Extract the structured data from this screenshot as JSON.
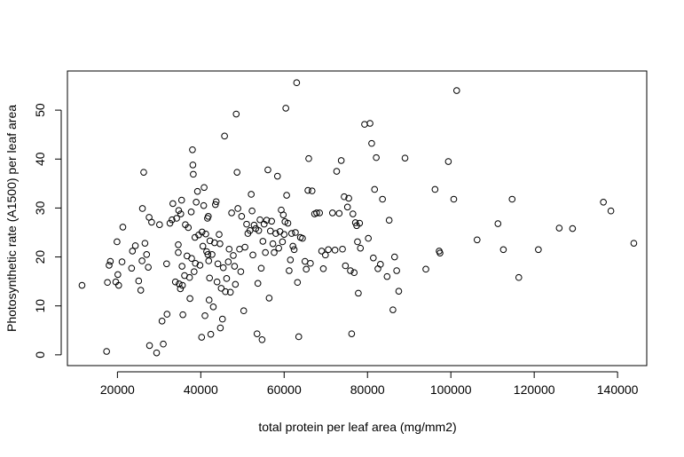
{
  "chart_data": {
    "type": "scatter",
    "title": "",
    "xlabel": "total protein per leaf area (mg/mm2)",
    "ylabel": "Photosynthetic rate (A1500) per leaf area",
    "xlim": [
      8000,
      147000
    ],
    "ylim": [
      -2.2,
      58
    ],
    "xticks": [
      20000,
      40000,
      60000,
      80000,
      100000,
      120000,
      140000
    ],
    "xtick_labels": [
      "20000",
      "40000",
      "60000",
      "80000",
      "100000",
      "120000",
      "140000"
    ],
    "yticks": [
      0,
      10,
      20,
      30,
      40,
      50
    ],
    "ytick_labels": [
      "0",
      "10",
      "20",
      "30",
      "40",
      "50"
    ],
    "grid": false,
    "legend": "none",
    "marker": "open-circle",
    "colors": {
      "point": "#000000",
      "axis": "#000000",
      "background": "#ffffff"
    },
    "points": [
      [
        11500,
        14.2
      ],
      [
        17400,
        0.7
      ],
      [
        17600,
        14.8
      ],
      [
        18000,
        18.3
      ],
      [
        18300,
        19.1
      ],
      [
        19600,
        14.9
      ],
      [
        19900,
        23.1
      ],
      [
        20100,
        16.4
      ],
      [
        20300,
        14.2
      ],
      [
        21100,
        19.0
      ],
      [
        21300,
        26.1
      ],
      [
        23400,
        17.7
      ],
      [
        23600,
        21.2
      ],
      [
        24300,
        22.3
      ],
      [
        25100,
        15.1
      ],
      [
        25600,
        13.2
      ],
      [
        25900,
        19.2
      ],
      [
        26000,
        29.9
      ],
      [
        26300,
        37.3
      ],
      [
        26600,
        22.8
      ],
      [
        27000,
        20.5
      ],
      [
        27400,
        17.9
      ],
      [
        27600,
        28.1
      ],
      [
        27700,
        1.9
      ],
      [
        28200,
        27.1
      ],
      [
        29400,
        0.4
      ],
      [
        30100,
        26.6
      ],
      [
        30700,
        6.9
      ],
      [
        31000,
        2.2
      ],
      [
        31800,
        18.6
      ],
      [
        31900,
        8.3
      ],
      [
        32600,
        26.9
      ],
      [
        33100,
        27.6
      ],
      [
        33300,
        30.9
      ],
      [
        33900,
        14.9
      ],
      [
        34200,
        27.9
      ],
      [
        34600,
        20.9
      ],
      [
        34600,
        22.5
      ],
      [
        34700,
        29.5
      ],
      [
        34800,
        14.5
      ],
      [
        35100,
        13.5
      ],
      [
        35200,
        28.8
      ],
      [
        35400,
        31.6
      ],
      [
        35500,
        18.1
      ],
      [
        35600,
        14.2
      ],
      [
        35700,
        8.2
      ],
      [
        36100,
        16.2
      ],
      [
        36300,
        26.6
      ],
      [
        36700,
        20.2
      ],
      [
        37000,
        26.0
      ],
      [
        37300,
        15.8
      ],
      [
        37400,
        11.5
      ],
      [
        37700,
        29.2
      ],
      [
        37800,
        19.7
      ],
      [
        38000,
        41.9
      ],
      [
        38100,
        38.8
      ],
      [
        38200,
        36.9
      ],
      [
        38400,
        17.0
      ],
      [
        38600,
        24.0
      ],
      [
        38700,
        18.7
      ],
      [
        38900,
        31.2
      ],
      [
        39200,
        33.4
      ],
      [
        39500,
        24.5
      ],
      [
        39800,
        18.3
      ],
      [
        40200,
        3.6
      ],
      [
        40300,
        25.1
      ],
      [
        40500,
        22.2
      ],
      [
        40700,
        30.5
      ],
      [
        40800,
        34.2
      ],
      [
        41000,
        8.0
      ],
      [
        41200,
        24.7
      ],
      [
        41400,
        21.1
      ],
      [
        41600,
        27.9
      ],
      [
        41700,
        20.5
      ],
      [
        41800,
        28.3
      ],
      [
        41900,
        19.2
      ],
      [
        42000,
        11.2
      ],
      [
        42100,
        15.7
      ],
      [
        42200,
        23.3
      ],
      [
        42400,
        4.2
      ],
      [
        42700,
        20.5
      ],
      [
        43000,
        9.8
      ],
      [
        43300,
        22.9
      ],
      [
        43500,
        30.7
      ],
      [
        43700,
        31.3
      ],
      [
        43900,
        14.9
      ],
      [
        44100,
        18.6
      ],
      [
        44400,
        24.6
      ],
      [
        44600,
        22.7
      ],
      [
        44700,
        5.5
      ],
      [
        44900,
        13.6
      ],
      [
        45200,
        7.3
      ],
      [
        45400,
        17.8
      ],
      [
        45700,
        44.7
      ],
      [
        45900,
        12.9
      ],
      [
        46200,
        15.6
      ],
      [
        46600,
        19.0
      ],
      [
        46800,
        21.6
      ],
      [
        47100,
        12.8
      ],
      [
        47400,
        29.0
      ],
      [
        47800,
        20.3
      ],
      [
        48100,
        18.1
      ],
      [
        48300,
        14.4
      ],
      [
        48500,
        49.2
      ],
      [
        48700,
        37.3
      ],
      [
        48900,
        29.9
      ],
      [
        49300,
        21.6
      ],
      [
        49600,
        17.0
      ],
      [
        49800,
        28.3
      ],
      [
        50300,
        9.0
      ],
      [
        50600,
        22.0
      ],
      [
        51000,
        26.7
      ],
      [
        51300,
        24.8
      ],
      [
        51800,
        25.4
      ],
      [
        52100,
        32.8
      ],
      [
        52300,
        29.4
      ],
      [
        52500,
        20.4
      ],
      [
        52800,
        26.5
      ],
      [
        53200,
        25.8
      ],
      [
        53500,
        4.3
      ],
      [
        53700,
        14.6
      ],
      [
        53900,
        25.4
      ],
      [
        54200,
        27.6
      ],
      [
        54500,
        17.7
      ],
      [
        54700,
        3.1
      ],
      [
        54900,
        23.2
      ],
      [
        55200,
        26.7
      ],
      [
        55500,
        20.9
      ],
      [
        55800,
        27.5
      ],
      [
        56100,
        37.8
      ],
      [
        56400,
        11.6
      ],
      [
        56700,
        25.3
      ],
      [
        57000,
        27.3
      ],
      [
        57300,
        22.7
      ],
      [
        57600,
        20.9
      ],
      [
        58000,
        24.8
      ],
      [
        58400,
        36.5
      ],
      [
        58700,
        21.8
      ],
      [
        59000,
        25.2
      ],
      [
        59300,
        29.6
      ],
      [
        59600,
        23.1
      ],
      [
        59800,
        28.6
      ],
      [
        60000,
        24.6
      ],
      [
        60200,
        27.2
      ],
      [
        60400,
        50.4
      ],
      [
        60600,
        32.6
      ],
      [
        60900,
        26.9
      ],
      [
        61200,
        17.2
      ],
      [
        61500,
        19.4
      ],
      [
        61800,
        24.8
      ],
      [
        62100,
        22.2
      ],
      [
        62400,
        21.5
      ],
      [
        62700,
        25.0
      ],
      [
        63000,
        55.6
      ],
      [
        63200,
        14.8
      ],
      [
        63500,
        3.7
      ],
      [
        63900,
        24.0
      ],
      [
        64400,
        23.8
      ],
      [
        65000,
        19.1
      ],
      [
        65300,
        17.5
      ],
      [
        65700,
        33.6
      ],
      [
        65900,
        40.1
      ],
      [
        66300,
        18.7
      ],
      [
        66700,
        33.5
      ],
      [
        67300,
        28.8
      ],
      [
        67800,
        29.0
      ],
      [
        68500,
        29.0
      ],
      [
        69000,
        21.2
      ],
      [
        69400,
        17.6
      ],
      [
        69900,
        20.4
      ],
      [
        70600,
        21.5
      ],
      [
        71600,
        29.0
      ],
      [
        72200,
        21.4
      ],
      [
        72600,
        37.5
      ],
      [
        73200,
        28.9
      ],
      [
        73700,
        39.7
      ],
      [
        74000,
        21.6
      ],
      [
        74400,
        32.3
      ],
      [
        74700,
        18.2
      ],
      [
        75200,
        30.2
      ],
      [
        75500,
        32.0
      ],
      [
        75900,
        17.2
      ],
      [
        76200,
        4.3
      ],
      [
        76500,
        28.8
      ],
      [
        76800,
        16.8
      ],
      [
        77100,
        27.0
      ],
      [
        77400,
        26.4
      ],
      [
        77600,
        23.1
      ],
      [
        77800,
        12.6
      ],
      [
        78100,
        26.9
      ],
      [
        78300,
        21.8
      ],
      [
        79300,
        47.1
      ],
      [
        80200,
        23.8
      ],
      [
        80600,
        47.3
      ],
      [
        81000,
        43.2
      ],
      [
        81400,
        19.8
      ],
      [
        81700,
        33.8
      ],
      [
        82100,
        40.3
      ],
      [
        82500,
        17.6
      ],
      [
        83100,
        18.5
      ],
      [
        83600,
        31.8
      ],
      [
        84700,
        16.0
      ],
      [
        85200,
        27.5
      ],
      [
        86100,
        9.2
      ],
      [
        86500,
        20.0
      ],
      [
        87000,
        17.2
      ],
      [
        87500,
        13.0
      ],
      [
        89000,
        40.2
      ],
      [
        94000,
        17.5
      ],
      [
        96200,
        33.8
      ],
      [
        97200,
        21.2
      ],
      [
        97400,
        20.8
      ],
      [
        99400,
        39.5
      ],
      [
        100700,
        31.8
      ],
      [
        101400,
        54.0
      ],
      [
        106300,
        23.5
      ],
      [
        111300,
        26.8
      ],
      [
        112600,
        21.5
      ],
      [
        114700,
        31.8
      ],
      [
        116300,
        15.8
      ],
      [
        121000,
        21.5
      ],
      [
        126000,
        25.9
      ],
      [
        129200,
        25.8
      ],
      [
        136600,
        31.2
      ],
      [
        138400,
        29.4
      ],
      [
        143900,
        22.8
      ]
    ]
  }
}
